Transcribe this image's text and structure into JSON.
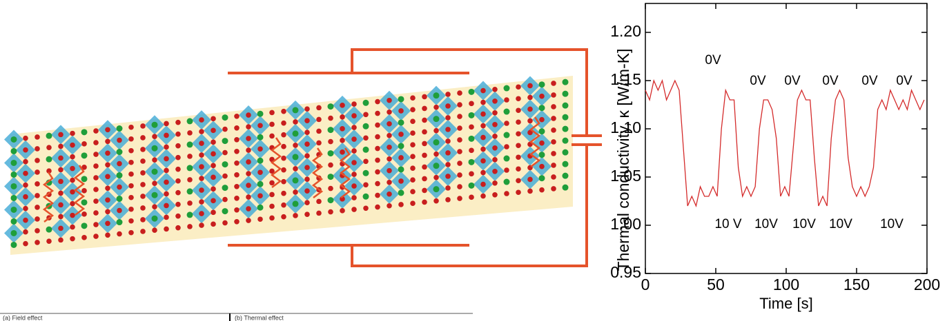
{
  "chart_data": {
    "type": "line",
    "ylabel": "Thermal conductivity, κ [W/m-K]",
    "xlabel": "Time [s]",
    "x": [
      0,
      3,
      6,
      9,
      12,
      15,
      18,
      21,
      24,
      27,
      30,
      33,
      36,
      39,
      42,
      45,
      48,
      51,
      54,
      57,
      60,
      63,
      66,
      69,
      72,
      75,
      78,
      81,
      84,
      87,
      90,
      93,
      96,
      99,
      102,
      105,
      108,
      111,
      114,
      117,
      120,
      123,
      126,
      129,
      132,
      135,
      138,
      141,
      144,
      147,
      150,
      153,
      156,
      159,
      162,
      165,
      168,
      171,
      174,
      177,
      180,
      183,
      186,
      189,
      192,
      195,
      198
    ],
    "values": [
      1.14,
      1.13,
      1.15,
      1.14,
      1.15,
      1.13,
      1.14,
      1.15,
      1.14,
      1.08,
      1.02,
      1.03,
      1.02,
      1.04,
      1.03,
      1.03,
      1.04,
      1.03,
      1.1,
      1.14,
      1.13,
      1.13,
      1.06,
      1.03,
      1.04,
      1.03,
      1.04,
      1.1,
      1.13,
      1.13,
      1.12,
      1.09,
      1.03,
      1.04,
      1.03,
      1.08,
      1.13,
      1.14,
      1.13,
      1.13,
      1.07,
      1.02,
      1.03,
      1.02,
      1.09,
      1.13,
      1.14,
      1.13,
      1.07,
      1.04,
      1.03,
      1.04,
      1.03,
      1.04,
      1.06,
      1.12,
      1.13,
      1.12,
      1.14,
      1.13,
      1.12,
      1.13,
      1.12,
      1.14,
      1.13,
      1.12,
      1.13
    ],
    "color": "#d42a2a",
    "xlim": [
      0,
      200
    ],
    "xticks": [
      0,
      50,
      100,
      150,
      200
    ],
    "ylim": [
      0.95,
      1.23
    ],
    "yticks": [
      {
        "value": 0.95,
        "label": "0.95"
      },
      {
        "value": 1.0,
        "label": "1.00"
      },
      {
        "value": 1.05,
        "label": "1.05"
      },
      {
        "value": 1.1,
        "label": "1.10"
      },
      {
        "value": 1.15,
        "label": "1.15"
      },
      {
        "value": 1.2,
        "label": "1.20"
      }
    ],
    "annotations": [
      "0V",
      "0V",
      "0V",
      "0V",
      "0V",
      "0V",
      "10 V",
      "10V",
      "10V",
      "10V",
      "10V"
    ]
  },
  "fragment": [
    "(a) Field effect",
    "(b) Thermal effect"
  ]
}
